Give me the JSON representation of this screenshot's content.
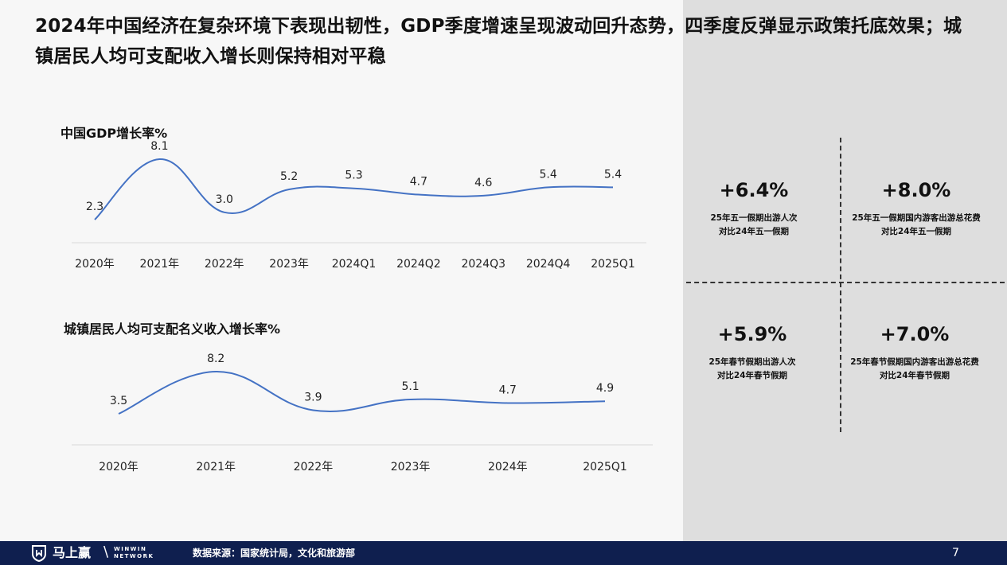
{
  "slide": {
    "title": "2024年中国经济在复杂环境下表现出韧性，GDP季度增速呈现波动回升态势，四季度反弹显示政策托底效果；城镇居民人均可支配收入增长则保持相对平稳",
    "page_number": "7"
  },
  "chart_data": [
    {
      "type": "line",
      "title": "中国GDP增长率%",
      "categories": [
        "2020年",
        "2021年",
        "2022年",
        "2023年",
        "2024Q1",
        "2024Q2",
        "2024Q3",
        "2024Q4",
        "2025Q1"
      ],
      "series": [
        {
          "values": [
            2.3,
            8.1,
            3.0,
            5.2,
            5.3,
            4.7,
            4.6,
            5.4,
            5.4
          ]
        }
      ],
      "data_labels": [
        "2.3",
        "8.1",
        "3.0",
        "5.2",
        "5.3",
        "4.7",
        "4.6",
        "5.4",
        "5.4"
      ],
      "smooth": true,
      "grid": false,
      "color": "#4472c4"
    },
    {
      "type": "line",
      "title": "城镇居民人均可支配名义收入增长率%",
      "categories": [
        "2020年",
        "2021年",
        "2022年",
        "2023年",
        "2024年",
        "2025Q1"
      ],
      "series": [
        {
          "values": [
            3.5,
            8.2,
            3.9,
            5.1,
            4.7,
            4.9
          ]
        }
      ],
      "data_labels": [
        "3.5",
        "8.2",
        "3.9",
        "5.1",
        "4.7",
        "4.9"
      ],
      "smooth": true,
      "grid": false,
      "color": "#4472c4"
    }
  ],
  "stats": [
    {
      "value": "+6.4%",
      "line1": "25年五一假期出游人次",
      "line2": "对比24年五一假期"
    },
    {
      "value": "+8.0%",
      "line1": "25年五一假期国内游客出游总花费",
      "line2": "对比24年五一假期"
    },
    {
      "value": "+5.9%",
      "line1": "25年春节假期出游人次",
      "line2": "对比24年春节假期"
    },
    {
      "value": "+7.0%",
      "line1": "25年春节假期国内游客出游总花费",
      "line2": "对比24年春节假期"
    }
  ],
  "footer": {
    "logo_text": "马上赢",
    "logo_en_1": "WINWIN",
    "logo_en_2": "NETWORK",
    "source": "数据来源：国家统计局，文化和旅游部",
    "logo_icon": "shield-logo-icon"
  }
}
